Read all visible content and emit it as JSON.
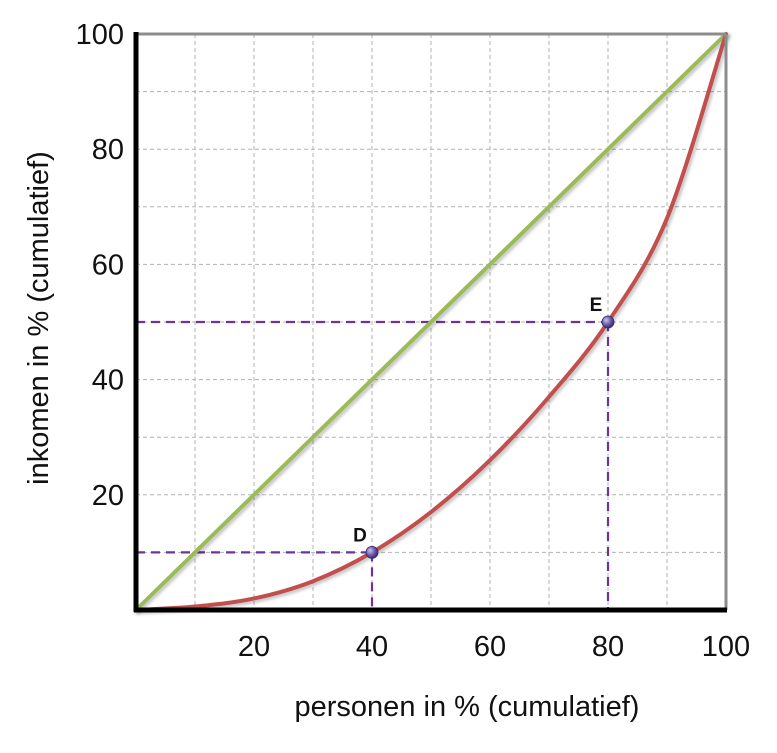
{
  "chart_data": {
    "type": "line",
    "xlabel": "personen in % (cumulatief)",
    "ylabel": "inkomen in % (cumulatief)",
    "xlim": [
      0,
      100
    ],
    "ylim": [
      0,
      100
    ],
    "x_ticks": [
      "20",
      "40",
      "60",
      "80",
      "100"
    ],
    "y_ticks": [
      "20",
      "40",
      "60",
      "80",
      "100"
    ],
    "grid": true,
    "series": [
      {
        "color": "#9bbb59",
        "x": [
          0,
          100
        ],
        "y": [
          0,
          100
        ]
      },
      {
        "color": "#c0504d",
        "x": [
          0,
          10,
          20,
          30,
          40,
          50,
          60,
          70,
          80,
          90,
          100
        ],
        "y": [
          0,
          0.6,
          2,
          5,
          10,
          17,
          26,
          37,
          50,
          68,
          100
        ]
      }
    ],
    "points": [
      {
        "label": "D",
        "x": 40,
        "y": 10
      },
      {
        "label": "E",
        "x": 80,
        "y": 50
      }
    ],
    "guide_color": "#7030a0",
    "point_color": "#6a5aa8"
  }
}
